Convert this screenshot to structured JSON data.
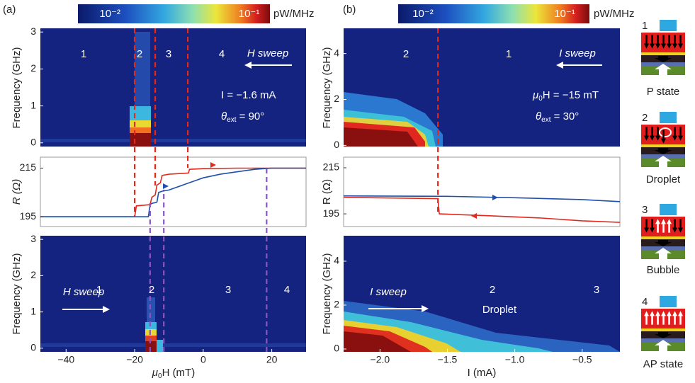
{
  "panel_labels": [
    "(a)",
    "(b)"
  ],
  "colorbars": [
    {
      "lim": [
        -2.23,
        -0.85
      ],
      "ticks": [
        {
          "value": -2,
          "label": "10⁻²"
        },
        {
          "value": -1,
          "label": "10⁻¹"
        }
      ],
      "unit": "pW/MHz"
    },
    {
      "lim": [
        -2.175,
        -0.825
      ],
      "ticks": [
        {
          "value": -2,
          "label": "10⁻²"
        },
        {
          "value": -1,
          "label": "10⁻¹"
        }
      ],
      "unit": "pW/MHz"
    }
  ],
  "chart_data": [
    {
      "type": "heatmap",
      "xlim": [
        -47.5,
        30
      ],
      "ylim": [
        -0.1,
        3.1
      ],
      "yticks": [
        0,
        1,
        2,
        3
      ],
      "ylabel": "Frequency (GHz)",
      "regions": [
        "1",
        "2",
        "3",
        "4"
      ],
      "sweep": "H sweep",
      "current": "I = −1.6 mA",
      "angle": {
        "symbol": "θ",
        "sub": "ext",
        "rest": " = 90°"
      }
    },
    {
      "type": "line",
      "xlim": [
        -47.5,
        30
      ],
      "ylim": [
        191,
        219.5
      ],
      "yticks": [
        195,
        215
      ],
      "ylabel": "R (Ω)",
      "series": [
        {
          "color": "#e02a1e",
          "x": [
            30,
            20,
            10,
            0,
            -4,
            -4.3,
            -10,
            -12,
            -12.5,
            -13.5,
            -14,
            -15,
            -15.5,
            -19.5,
            -20,
            -30,
            -40,
            -47.5
          ],
          "values": [
            215,
            215,
            215,
            214.8,
            214.5,
            213,
            212.5,
            212,
            209,
            208,
            204,
            203,
            200,
            199.5,
            195,
            195,
            195,
            195
          ]
        },
        {
          "color": "#1f4fa8",
          "x": [
            -47.5,
            -30,
            -16,
            -15.5,
            -15,
            -13.5,
            -13,
            -12,
            -10,
            -5,
            0,
            5,
            10,
            15,
            20,
            25,
            30
          ],
          "values": [
            195,
            195,
            195,
            200,
            200.5,
            201,
            205,
            205.5,
            206,
            208.5,
            211,
            212.5,
            213.5,
            214.5,
            215,
            215,
            215
          ]
        }
      ],
      "markers": [
        {
          "x": -20,
          "color": "#e02a1e"
        },
        {
          "x": -14,
          "color": "#e02a1e"
        },
        {
          "x": -4.5,
          "color": "#e02a1e"
        },
        {
          "x": -15.5,
          "color": "#8a55c0"
        },
        {
          "x": -11.5,
          "color": "#8a55c0"
        },
        {
          "x": 18.5,
          "color": "#8a55c0"
        }
      ]
    },
    {
      "type": "heatmap",
      "xlim": [
        -47.5,
        30
      ],
      "ylim": [
        -0.1,
        3.1
      ],
      "yticks": [
        0,
        1,
        2,
        3
      ],
      "ylabel": "Frequency (GHz)",
      "xticks": [
        {
          "value": -40,
          "label": "−40"
        },
        {
          "value": -20,
          "label": "−20"
        },
        0,
        20
      ],
      "xlabel": {
        "symbol": "μ",
        "sub": "0",
        "rest": "H (mT)"
      },
      "regions": [
        "1",
        "2",
        "3",
        "4"
      ],
      "sweep": "H sweep"
    },
    {
      "type": "heatmap",
      "xlim": [
        -2.27,
        -0.22
      ],
      "ylim": [
        -0.05,
        5.1
      ],
      "yticks": [
        0,
        2,
        4
      ],
      "ylabel": "Frequency (GHz)",
      "regions": [
        "2",
        "1"
      ],
      "sweep": "I sweep",
      "field": {
        "symbol": "μ",
        "sub": "0",
        "rest": "H = −15 mT"
      },
      "angle": {
        "symbol": "θ",
        "sub": "ext",
        "rest": " = 30°"
      }
    },
    {
      "type": "line",
      "xlim": [
        -2.27,
        -0.22
      ],
      "ylim": [
        189.5,
        219.6
      ],
      "yticks": [
        195,
        215
      ],
      "ylabel": "R (Ω)",
      "series": [
        {
          "color": "#1f4fa8",
          "x": [
            -2.27,
            -1.5,
            -1.0,
            -0.5,
            -0.22
          ],
          "values": [
            202.8,
            202.6,
            202,
            201.2,
            200.3
          ]
        },
        {
          "color": "#e02a1e",
          "x": [
            -2.27,
            -1.57,
            -1.56,
            -1.2,
            -0.8,
            -0.5,
            -0.22
          ],
          "values": [
            202.2,
            201.6,
            195,
            194.2,
            193.2,
            192,
            191.3
          ]
        }
      ],
      "markers": [
        {
          "x": -1.57,
          "color": "#e02a1e"
        }
      ]
    },
    {
      "type": "heatmap",
      "xlim": [
        -2.27,
        -0.22
      ],
      "ylim": [
        -0.13,
        5.16
      ],
      "yticks": [
        0,
        2,
        4
      ],
      "ylabel": "Frequency (GHz)",
      "xticks": [
        {
          "value": -2,
          "label": "−2.0"
        },
        {
          "value": -1.5,
          "label": "−1.5"
        },
        {
          "value": -1,
          "label": "−1.0"
        },
        {
          "value": -0.5,
          "label": "−0.5"
        }
      ],
      "xlabel": "I (mA)",
      "regions": [
        "2",
        "3"
      ],
      "sweep": "I sweep",
      "state": "Droplet"
    }
  ],
  "schematic": [
    {
      "number": "1",
      "caption": "P state"
    },
    {
      "number": "2",
      "caption": "Droplet"
    },
    {
      "number": "3",
      "caption": "Bubble"
    },
    {
      "number": "4",
      "caption": "AP state"
    }
  ]
}
